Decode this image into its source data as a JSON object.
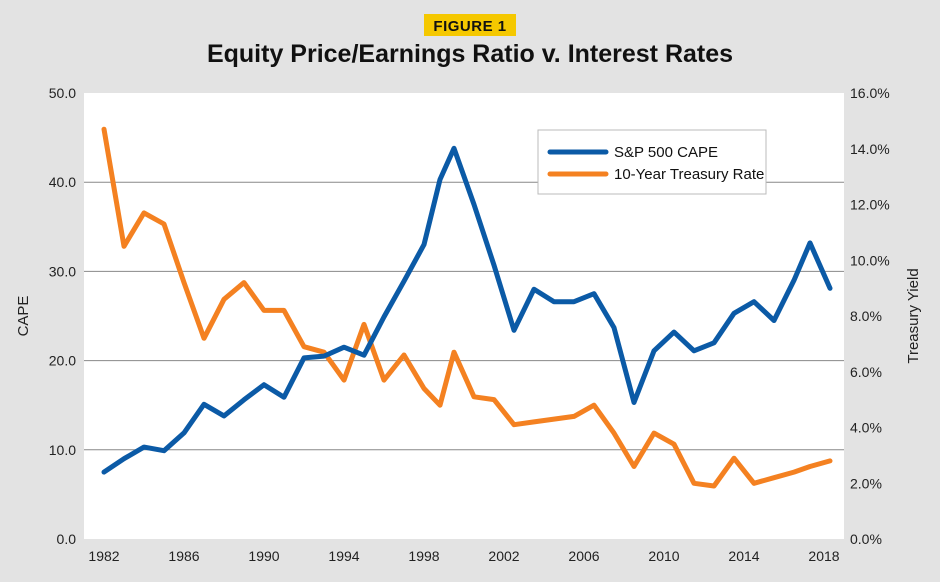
{
  "figure_label": "FIGURE 1",
  "colors": {
    "background": "#e3e3e3",
    "plot_background": "#ffffff",
    "badge_background": "#f5c800",
    "cape": "#0b5aa6",
    "treasury": "#f48121",
    "grid": "#888888"
  },
  "chart_data": {
    "type": "line",
    "title": "Equity Price/Earnings Ratio v. Interest Rates",
    "ylabel": "CAPE",
    "y2label": "Treasury Yield",
    "xlabel": "",
    "xlim": [
      1981,
      2019
    ],
    "ylim": [
      0,
      50
    ],
    "y2lim": [
      0,
      16
    ],
    "x_ticks": [
      "1982",
      "1986",
      "1990",
      "1994",
      "1998",
      "2002",
      "2006",
      "2010",
      "2014",
      "2018"
    ],
    "y_ticks": [
      "0.0",
      "10.0",
      "20.0",
      "30.0",
      "40.0",
      "50.0"
    ],
    "y2_ticks": [
      "0.0%",
      "2.0%",
      "4.0%",
      "6.0%",
      "8.0%",
      "10.0%",
      "12.0%",
      "14.0%",
      "16.0%"
    ],
    "grid": "horizontal",
    "legend_position": "top-right",
    "series": [
      {
        "name": "S&P 500 CAPE",
        "axis": "left",
        "color": "#0b5aa6",
        "x": [
          1982,
          1983,
          1984,
          1985,
          1986,
          1987,
          1988,
          1989,
          1990,
          1991,
          1992,
          1993,
          1994,
          1995,
          1996,
          1997,
          1998,
          1998.8,
          1999.5,
          2000.5,
          2001.5,
          2002.5,
          2003.5,
          2004.5,
          2005.5,
          2006.5,
          2007.5,
          2008.5,
          2009.5,
          2010.5,
          2011.5,
          2012.5,
          2013.5,
          2014.5,
          2015.5,
          2016.5,
          2017.3,
          2018.3
        ],
        "y": [
          7.5,
          9.0,
          10.3,
          9.9,
          11.9,
          15.1,
          13.8,
          15.6,
          17.3,
          15.9,
          20.3,
          20.5,
          21.5,
          20.6,
          24.9,
          28.9,
          33.0,
          40.3,
          43.8,
          37.5,
          30.7,
          23.4,
          28.0,
          26.6,
          26.6,
          27.5,
          23.7,
          15.3,
          21.1,
          23.2,
          21.1,
          22.0,
          25.3,
          26.6,
          24.5,
          29.0,
          33.2,
          28.1
        ]
      },
      {
        "name": "10-Year Treasury Rate",
        "axis": "right",
        "color": "#f48121",
        "x": [
          1982,
          1983,
          1984,
          1985,
          1986,
          1987,
          1988,
          1989,
          1990,
          1991,
          1992,
          1993,
          1994,
          1995,
          1996,
          1997,
          1998,
          1998.8,
          1999.5,
          2000.5,
          2001.5,
          2002.5,
          2003.5,
          2004.5,
          2005.5,
          2006.5,
          2007.5,
          2008.5,
          2009.5,
          2010.5,
          2011.5,
          2012.5,
          2013.5,
          2014.5,
          2015.5,
          2016.5,
          2017.3,
          2018.3
        ],
        "y": [
          14.7,
          10.5,
          11.7,
          11.3,
          9.2,
          7.2,
          8.6,
          9.2,
          8.2,
          8.2,
          6.9,
          6.7,
          5.7,
          7.7,
          5.7,
          6.6,
          5.4,
          4.8,
          6.7,
          5.1,
          5.0,
          4.1,
          4.2,
          4.3,
          4.4,
          4.8,
          3.8,
          2.6,
          3.8,
          3.4,
          2.0,
          1.9,
          2.9,
          2.0,
          2.2,
          2.4,
          2.6,
          2.8
        ]
      }
    ]
  }
}
